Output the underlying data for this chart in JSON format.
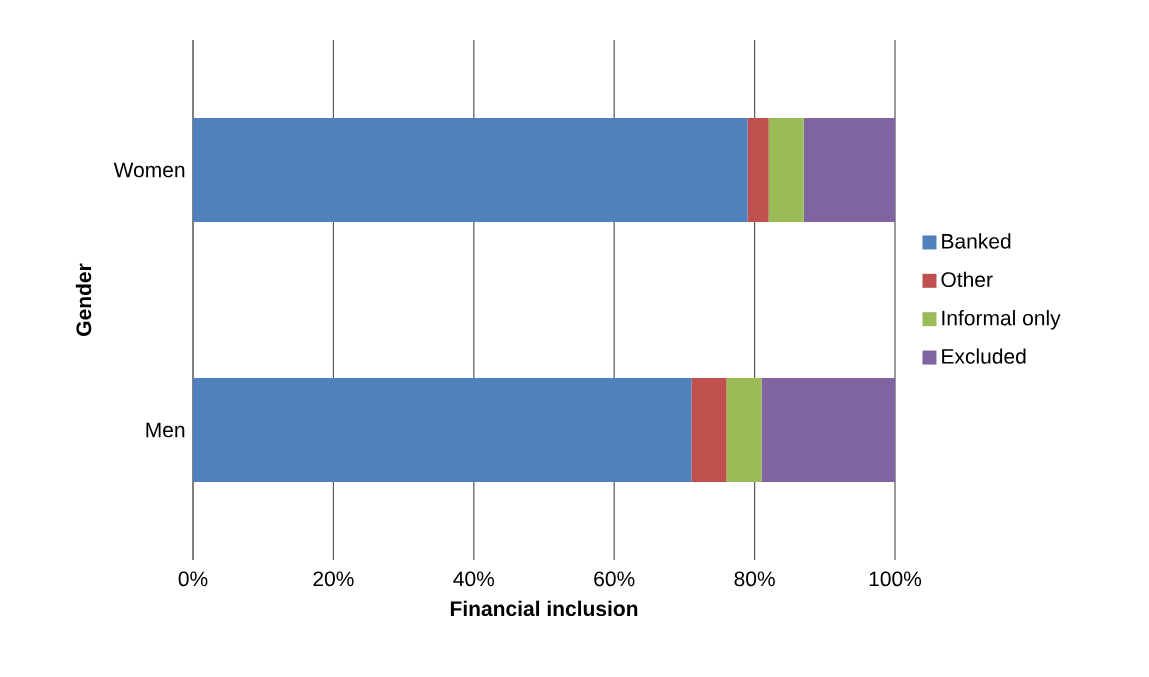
{
  "chart_data": {
    "type": "bar",
    "orientation": "horizontal",
    "stacked": true,
    "xlabel": "Financial inclusion",
    "ylabel": "Gender",
    "categories": [
      "Women",
      "Men"
    ],
    "series": [
      {
        "name": "Banked",
        "color": "#4f81bd",
        "values": [
          79,
          71
        ]
      },
      {
        "name": "Other",
        "color": "#c0504d",
        "values": [
          3,
          5
        ]
      },
      {
        "name": "Informal only",
        "color": "#9bbb59",
        "values": [
          5,
          5
        ]
      },
      {
        "name": "Excluded",
        "color": "#8064a2",
        "values": [
          13,
          19
        ]
      }
    ],
    "xlim": [
      0,
      100
    ],
    "xticks": [
      {
        "value": 0,
        "label": "0%"
      },
      {
        "value": 20,
        "label": "20%"
      },
      {
        "value": 40,
        "label": "40%"
      },
      {
        "value": 60,
        "label": "60%"
      },
      {
        "value": 80,
        "label": "80%"
      },
      {
        "value": 100,
        "label": "100%"
      }
    ],
    "grid": "x",
    "legend": "right"
  }
}
